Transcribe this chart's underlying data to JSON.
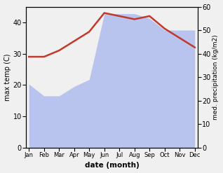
{
  "months": [
    "Jan",
    "Feb",
    "Mar",
    "Apr",
    "May",
    "Jun",
    "Jul",
    "Aug",
    "Sep",
    "Oct",
    "Nov",
    "Dec"
  ],
  "x": [
    0,
    1,
    2,
    3,
    4,
    5,
    6,
    7,
    8,
    9,
    10,
    11
  ],
  "temp_max": [
    29,
    29,
    31,
    34,
    37,
    43,
    42,
    41,
    42,
    38,
    35,
    32
  ],
  "precip_mm": [
    27,
    22,
    22,
    26,
    29,
    57,
    57,
    57,
    55,
    50,
    50,
    50
  ],
  "temp_color": "#c0392b",
  "precip_fill_color": "#b8c4ee",
  "ylabel_left": "max temp (C)",
  "ylabel_right": "med. precipitation (kg/m2)",
  "xlabel": "date (month)",
  "ylim_left": [
    0,
    45
  ],
  "ylim_right": [
    0,
    60
  ],
  "yticks_left": [
    0,
    10,
    20,
    30,
    40
  ],
  "yticks_right": [
    0,
    10,
    20,
    30,
    40,
    50,
    60
  ],
  "bg_color": "#f0f0f0",
  "plot_bg_color": "#ffffff",
  "temp_linewidth": 1.8
}
